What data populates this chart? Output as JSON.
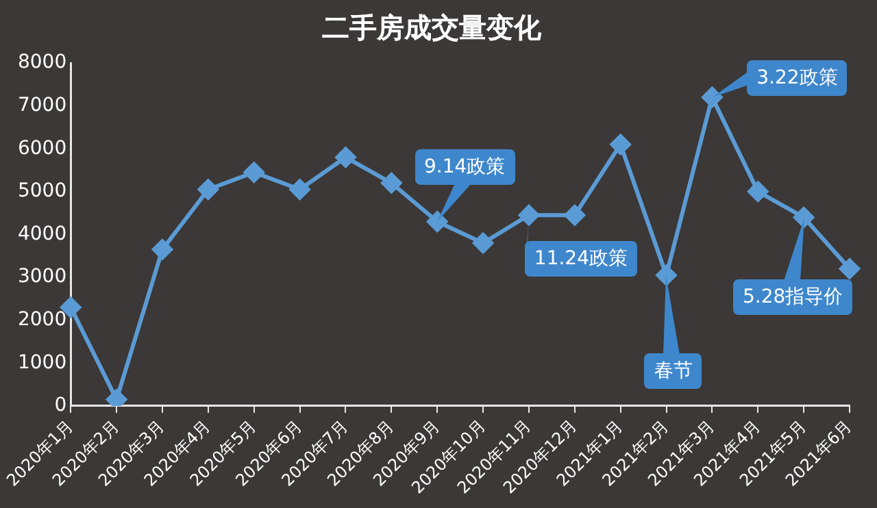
{
  "chart_data": {
    "type": "line",
    "title": "二手房成交量变化",
    "categories": [
      "2020年1月",
      "2020年2月",
      "2020年3月",
      "2020年4月",
      "2020年5月",
      "2020年6月",
      "2020年7月",
      "2020年8月",
      "2020年9月",
      "2020年10月",
      "2020年11月",
      "2020年12月",
      "2021年1月",
      "2021年2月",
      "2021年3月",
      "2021年4月",
      "2021年5月",
      "2021年6月"
    ],
    "series": [
      {
        "color": "#5b9bd5",
        "values": [
          2300,
          150,
          3650,
          5050,
          5450,
          5050,
          5800,
          5200,
          4300,
          3800,
          4450,
          4450,
          6100,
          3050,
          7200,
          5000,
          4400,
          3200
        ]
      }
    ],
    "ylim": [
      0,
      8000
    ],
    "yticks": [
      0,
      1000,
      2000,
      3000,
      4000,
      5000,
      6000,
      7000,
      8000
    ],
    "grid": false,
    "legend": false,
    "marker": "diamond",
    "line_style": "solid",
    "annotations": [
      {
        "text": "9.14政策",
        "x": "2020年9月",
        "y": 4300
      },
      {
        "text": "11.24政策",
        "x": "2020年11月",
        "y": 4450
      },
      {
        "text": "春节",
        "x": "2021年2月",
        "y": 3050
      },
      {
        "text": "3.22政策",
        "x": "2021年3月",
        "y": 7200
      },
      {
        "text": "5.28指导价",
        "x": "2021年5月",
        "y": 4400
      }
    ]
  }
}
